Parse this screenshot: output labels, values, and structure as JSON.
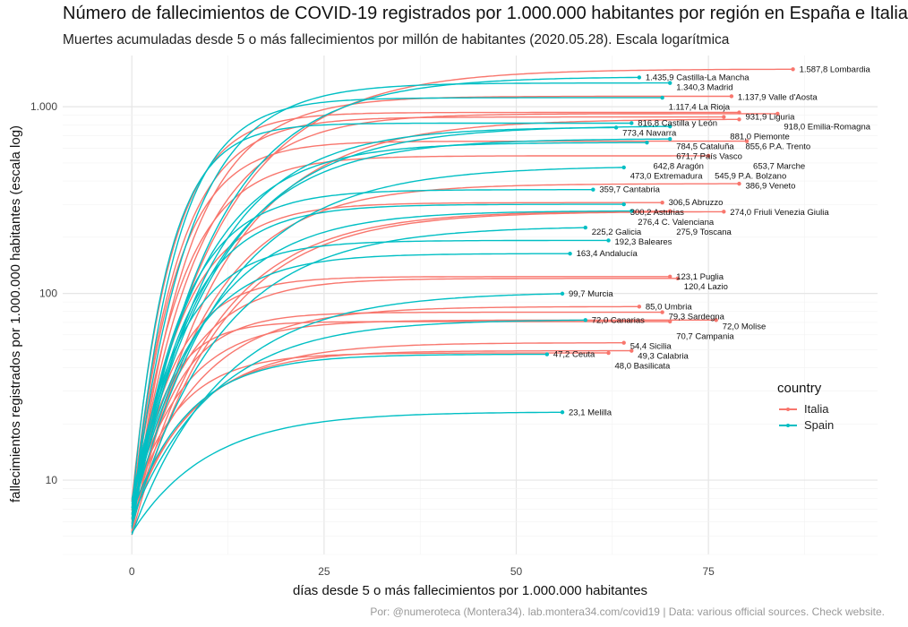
{
  "title": "Número de fallecimientos de COVID-19 registrados por 1.000.000 habitantes por región en España e Italia",
  "subtitle": "Muertes acumuladas desde 5 o más fallecimientos por millón de habitantes (2020.05.28). Escala logarítmica",
  "caption": "Por: @numeroteca (Montera34). lab.montera34.com/covid19 | Data: various official sources. Check website.",
  "legend": {
    "title": "country",
    "items": [
      {
        "label": "Italia",
        "color": "#F8766D"
      },
      {
        "label": "Spain",
        "color": "#00BFC4"
      }
    ]
  },
  "chart_data": {
    "type": "line",
    "x_scale": "linear",
    "y_scale": "log10",
    "xlabel": "días desde 5 o más fallecimientos por 1.000.000 habitantes",
    "ylabel": "fallecimientos registrados por 1.000.000 habitantes (escala log)",
    "xlim": [
      -9,
      97
    ],
    "ylim": [
      4,
      1880
    ],
    "x_ticks": [
      {
        "v": 0,
        "label": "0"
      },
      {
        "v": 25,
        "label": "25"
      },
      {
        "v": 50,
        "label": "50"
      },
      {
        "v": 75,
        "label": "75"
      }
    ],
    "y_ticks": [
      {
        "v": 10,
        "label": "10"
      },
      {
        "v": 100,
        "label": "100"
      },
      {
        "v": 1000,
        "label": "1.000"
      }
    ],
    "grid": true,
    "legend_position": "right",
    "series": [
      {
        "name": "Lombardia",
        "country": "Italia",
        "end_day": 86,
        "end_value": 1587.8,
        "label": "1.587,8 Lombardia"
      },
      {
        "name": "Valle d'Aosta",
        "country": "Italia",
        "end_day": 78,
        "end_value": 1137.9,
        "label": "1.137,9 Valle d'Aosta"
      },
      {
        "name": "Liguria",
        "country": "Italia",
        "end_day": 79,
        "end_value": 931.9,
        "label": "931,9 Liguria"
      },
      {
        "name": "Emilia-Romagna",
        "country": "Italia",
        "end_day": 84,
        "end_value": 918.0,
        "label": "918,0 Emilia-Romagna"
      },
      {
        "name": "Piemonte",
        "country": "Italia",
        "end_day": 77,
        "end_value": 881.0,
        "label": "881,0 Piemonte"
      },
      {
        "name": "P.A. Trento",
        "country": "Italia",
        "end_day": 79,
        "end_value": 855.6,
        "label": "855,6 P.A. Trento"
      },
      {
        "name": "Marche",
        "country": "Italia",
        "end_day": 80,
        "end_value": 653.7,
        "label": "653,7 Marche"
      },
      {
        "name": "P.A. Bolzano",
        "country": "Italia",
        "end_day": 75,
        "end_value": 545.9,
        "label": "545,9 P.A. Bolzano"
      },
      {
        "name": "Veneto",
        "country": "Italia",
        "end_day": 79,
        "end_value": 386.9,
        "label": "386,9 Veneto"
      },
      {
        "name": "Abruzzo",
        "country": "Italia",
        "end_day": 69,
        "end_value": 306.5,
        "label": "306,5 Abruzzo"
      },
      {
        "name": "Friuli Venezia Giulia",
        "country": "Italia",
        "end_day": 77,
        "end_value": 274.0,
        "label": "274,0 Friuli Venezia Giulia"
      },
      {
        "name": "Toscana",
        "country": "Italia",
        "end_day": 70,
        "end_value": 275.9,
        "label": "275,9 Toscana"
      },
      {
        "name": "Puglia",
        "country": "Italia",
        "end_day": 70,
        "end_value": 123.1,
        "label": "123,1 Puglia"
      },
      {
        "name": "Lazio",
        "country": "Italia",
        "end_day": 71,
        "end_value": 120.4,
        "label": "120,4 Lazio"
      },
      {
        "name": "Umbria",
        "country": "Italia",
        "end_day": 66,
        "end_value": 85.0,
        "label": "85,0 Umbria"
      },
      {
        "name": "Sardegna",
        "country": "Italia",
        "end_day": 69,
        "end_value": 79.3,
        "label": "79,3 Sardegna"
      },
      {
        "name": "Campania",
        "country": "Italia",
        "end_day": 70,
        "end_value": 70.7,
        "label": "70,7 Campania"
      },
      {
        "name": "Molise",
        "country": "Italia",
        "end_day": 76,
        "end_value": 72.0,
        "label": "72,0 Molise"
      },
      {
        "name": "Sicilia",
        "country": "Italia",
        "end_day": 64,
        "end_value": 54.4,
        "label": "54,4 Sicilia"
      },
      {
        "name": "Basilicata",
        "country": "Italia",
        "end_day": 62,
        "end_value": 48.0,
        "label": "48,0 Basilicata"
      },
      {
        "name": "Calabria",
        "country": "Italia",
        "end_day": 65,
        "end_value": 49.3,
        "label": "49,3 Calabria"
      },
      {
        "name": "Castilla-La Mancha",
        "country": "Spain",
        "end_day": 66,
        "end_value": 1435.9,
        "label": "1.435,9 Castilla-La Mancha"
      },
      {
        "name": "Madrid",
        "country": "Spain",
        "end_day": 70,
        "end_value": 1340.3,
        "label": "1.340,3 Madrid"
      },
      {
        "name": "La Rioja",
        "country": "Spain",
        "end_day": 69,
        "end_value": 1117.4,
        "label": "1.117,4 La Rioja"
      },
      {
        "name": "Castilla y León",
        "country": "Spain",
        "end_day": 65,
        "end_value": 816.8,
        "label": "816,8 Castilla y León"
      },
      {
        "name": "Navarra",
        "country": "Spain",
        "end_day": 63,
        "end_value": 773.4,
        "label": "773,4 Navarra"
      },
      {
        "name": "Cataluña",
        "country": "Spain",
        "end_day": 70,
        "end_value": 784.5,
        "label": "784,5 Cataluña"
      },
      {
        "name": "País Vasco",
        "country": "Spain",
        "end_day": 70,
        "end_value": 671.7,
        "label": "671,7 País Vasco"
      },
      {
        "name": "Aragón",
        "country": "Spain",
        "end_day": 67,
        "end_value": 642.8,
        "label": "642,8 Aragón"
      },
      {
        "name": "Extremadura",
        "country": "Spain",
        "end_day": 64,
        "end_value": 473.0,
        "label": "473,0 Extremadura"
      },
      {
        "name": "Cantabria",
        "country": "Spain",
        "end_day": 60,
        "end_value": 359.7,
        "label": "359,7 Cantabria"
      },
      {
        "name": "Asturias",
        "country": "Spain",
        "end_day": 64,
        "end_value": 300.2,
        "label": "300,2 Asturias"
      },
      {
        "name": "C. Valenciana",
        "country": "Spain",
        "end_day": 65,
        "end_value": 276.4,
        "label": "276,4 C. Valenciana"
      },
      {
        "name": "Galicia",
        "country": "Spain",
        "end_day": 59,
        "end_value": 225.2,
        "label": "225,2 Galicia"
      },
      {
        "name": "Baleares",
        "country": "Spain",
        "end_day": 62,
        "end_value": 192.3,
        "label": "192,3 Baleares"
      },
      {
        "name": "Andalucía",
        "country": "Spain",
        "end_day": 57,
        "end_value": 163.4,
        "label": "163,4 Andalucía"
      },
      {
        "name": "Murcia",
        "country": "Spain",
        "end_day": 56,
        "end_value": 99.7,
        "label": "99,7 Murcia"
      },
      {
        "name": "Canarias",
        "country": "Spain",
        "end_day": 59,
        "end_value": 72.0,
        "label": "72,0 Canarias"
      },
      {
        "name": "Ceuta",
        "country": "Spain",
        "end_day": 54,
        "end_value": 47.2,
        "label": "47,2 Ceuta"
      },
      {
        "name": "Melilla",
        "country": "Spain",
        "end_day": 56,
        "end_value": 23.1,
        "label": "23,1 Melilla"
      }
    ]
  }
}
